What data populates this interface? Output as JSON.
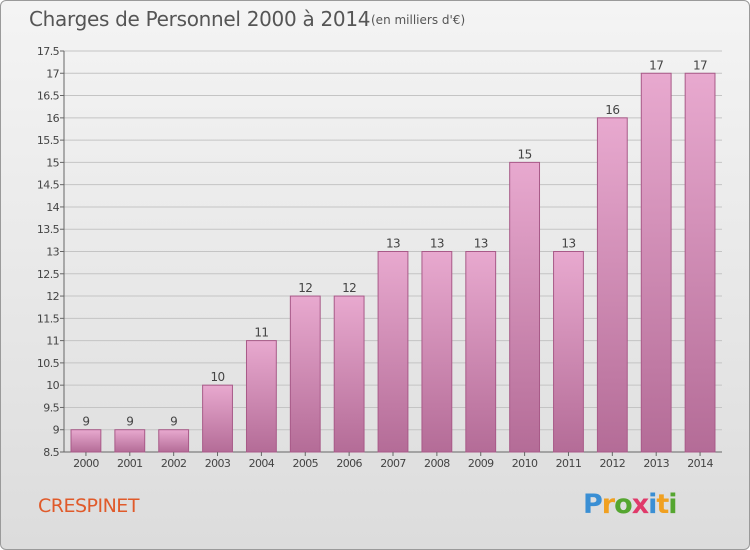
{
  "header": {
    "title": "Charges de Personnel 2000 à 2014",
    "subtitle": "(en milliers d'€)"
  },
  "footer": {
    "commune": "CRESPINET",
    "logo_letters": [
      "P",
      "r",
      "o",
      "x",
      "i",
      "t",
      "i"
    ],
    "logo_colors": [
      "#3a8fd4",
      "#f0a020",
      "#55a630",
      "#e03a6a",
      "#3a8fd4",
      "#f0a020",
      "#55a630"
    ]
  },
  "chart_data": {
    "type": "bar",
    "title": "Charges de Personnel 2000 à 2014",
    "subtitle": "(en milliers d'€)",
    "xlabel": "",
    "ylabel": "",
    "categories": [
      "2000",
      "2001",
      "2002",
      "2003",
      "2004",
      "2005",
      "2006",
      "2007",
      "2008",
      "2009",
      "2010",
      "2011",
      "2012",
      "2013",
      "2014"
    ],
    "values": [
      9,
      9,
      9,
      10,
      11,
      12,
      12,
      13,
      13,
      13,
      15,
      13,
      16,
      17,
      17
    ],
    "ylim": [
      8.5,
      17.5
    ],
    "yticks": [
      8.5,
      9,
      9.5,
      10,
      10.5,
      11,
      11.5,
      12,
      12.5,
      13,
      13.5,
      14,
      14.5,
      15,
      15.5,
      16,
      16.5,
      17,
      17.5
    ],
    "grid": true,
    "bar_color_top": "#e8a9cf",
    "bar_color_bottom": "#b46c97",
    "bar_edge": "#a85a88"
  }
}
